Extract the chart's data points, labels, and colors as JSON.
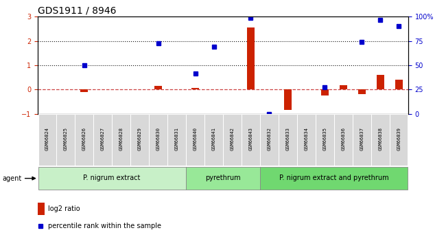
{
  "title": "GDS1911 / 8946",
  "samples": [
    "GSM66824",
    "GSM66825",
    "GSM66826",
    "GSM66827",
    "GSM66828",
    "GSM66829",
    "GSM66830",
    "GSM66831",
    "GSM66840",
    "GSM66841",
    "GSM66842",
    "GSM66843",
    "GSM66832",
    "GSM66833",
    "GSM66834",
    "GSM66835",
    "GSM66836",
    "GSM66837",
    "GSM66838",
    "GSM66839"
  ],
  "log2_ratio": [
    0.0,
    0.0,
    -0.1,
    0.0,
    0.0,
    0.0,
    0.15,
    0.0,
    0.05,
    0.0,
    0.0,
    2.55,
    0.0,
    -0.85,
    0.0,
    -0.25,
    0.18,
    -0.18,
    0.6,
    0.4
  ],
  "pct_rank": [
    null,
    null,
    1.0,
    null,
    null,
    null,
    1.9,
    null,
    0.65,
    1.75,
    null,
    2.95,
    -1.0,
    null,
    null,
    0.1,
    null,
    1.95,
    2.85,
    2.6
  ],
  "groups": [
    {
      "label": "P. nigrum extract",
      "start": 0,
      "end": 8,
      "color": "#c8f0c8"
    },
    {
      "label": "pyrethrum",
      "start": 8,
      "end": 12,
      "color": "#98e898"
    },
    {
      "label": "P. nigrum extract and pyrethrum",
      "start": 12,
      "end": 20,
      "color": "#70d870"
    }
  ],
  "ylim_left": [
    -1,
    3
  ],
  "ylim_right": [
    0,
    100
  ],
  "yticks_left": [
    -1,
    0,
    1,
    2,
    3
  ],
  "yticks_right": [
    0,
    25,
    50,
    75,
    100
  ],
  "bar_color": "#cc2200",
  "dot_color": "#0000cc",
  "zero_line_color": "#cc4444",
  "dotted_line_color": "#111111",
  "bg_color": "#ffffff",
  "label_bg": "#d4d4d4",
  "title_fontsize": 10,
  "tick_fontsize": 7,
  "sample_fontsize": 5,
  "group_fontsize": 7,
  "legend_fontsize": 7,
  "agent_label": "agent",
  "legend_log2": "log2 ratio",
  "legend_pct": "percentile rank within the sample"
}
